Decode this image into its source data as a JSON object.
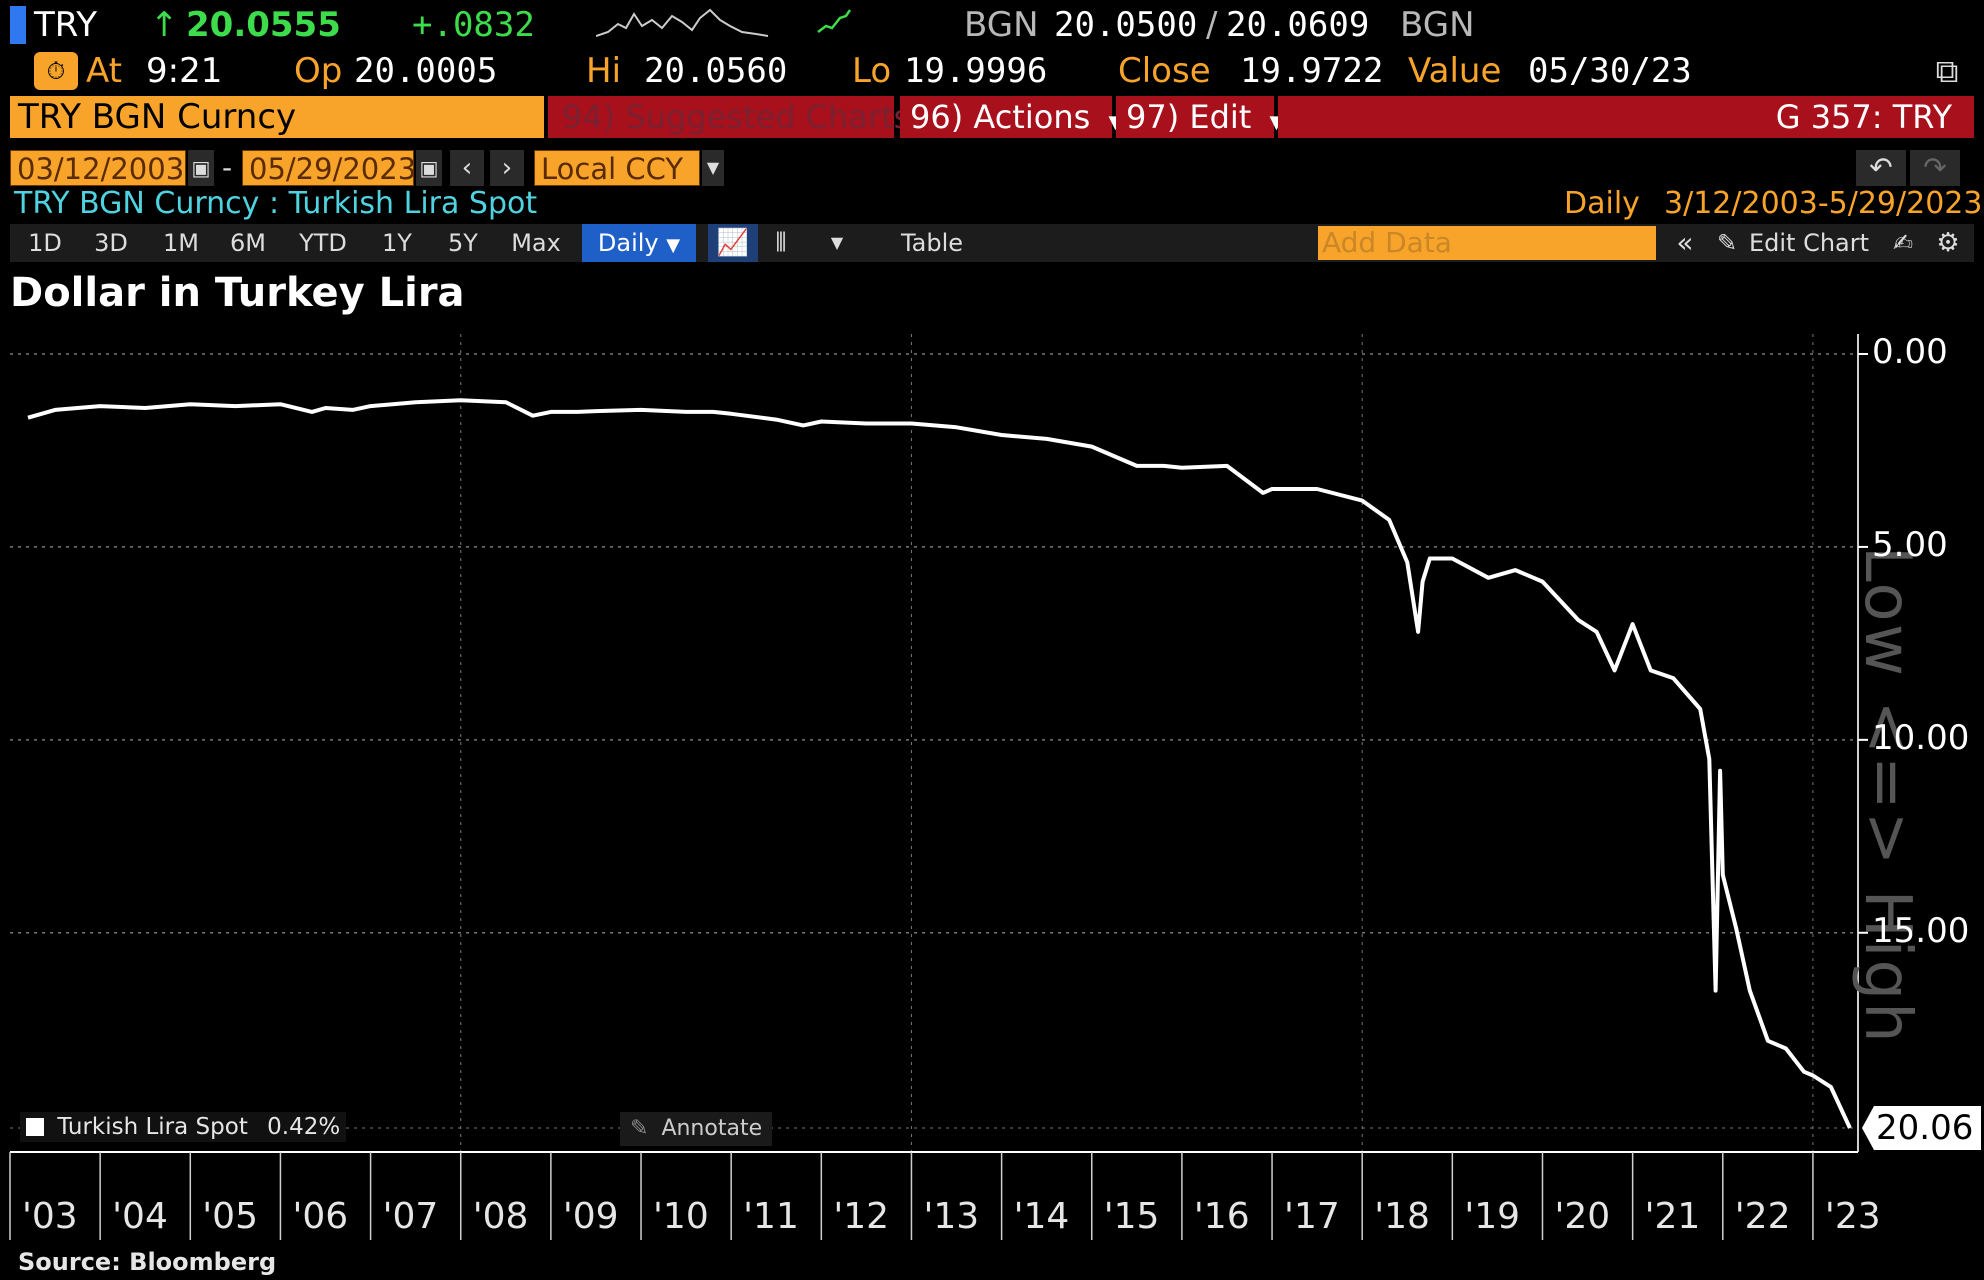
{
  "header": {
    "ticker": "TRY",
    "arrow": "↑",
    "last_price": "20.0555",
    "change": "+.0832",
    "source_label": "BGN",
    "bid": "20.0500",
    "slash": "/",
    "ask": "20.0609",
    "source_label2": "BGN",
    "at_label": "At",
    "at_value": "9:21",
    "op_label": "Op",
    "op_value": "20.0005",
    "hi_label": "Hi",
    "hi_value": "20.0560",
    "lo_label": "Lo",
    "lo_value": "19.9996",
    "close_label": "Close",
    "close_value": "19.9722",
    "value_label": "Value",
    "value_value": "05/30/23"
  },
  "menubar": {
    "security": "TRY BGN Curncy",
    "suggested": "94) Suggested Charts",
    "actions": "96) Actions",
    "edit": "97) Edit",
    "function_code": "G 357: TRY"
  },
  "controls": {
    "start_date": "03/12/2003",
    "dash": "-",
    "end_date": "05/29/2023",
    "currency": "Local CCY"
  },
  "info": {
    "security_desc": "TRY BGN Curncy : Turkish Lira Spot",
    "frequency": "Daily",
    "date_range": "3/12/2003-5/29/2023"
  },
  "toolbar": {
    "ranges": [
      "1D",
      "3D",
      "1M",
      "6M",
      "YTD",
      "1Y",
      "5Y",
      "Max"
    ],
    "period": "Daily",
    "table": "Table",
    "add_data_placeholder": "Add Data",
    "edit_chart": "Edit Chart"
  },
  "chart_data": {
    "type": "line",
    "title": "Dollar in Turkey Lira",
    "source": "Source: Bloomberg",
    "legend": "Turkish Lira Spot",
    "legend_pct": "0.42%",
    "annotate": "Annotate",
    "last_value_label": "20.06",
    "y_inverted": true,
    "ylim": [
      0,
      20.06
    ],
    "yticks": [
      "0.00",
      "5.00",
      "10.00",
      "15.00"
    ],
    "xticks": [
      "'03",
      "'04",
      "'05",
      "'06",
      "'07",
      "'08",
      "'09",
      "'10",
      "'11",
      "'12",
      "'13",
      "'14",
      "'15",
      "'16",
      "'17",
      "'18",
      "'19",
      "'20",
      "'21",
      "'22",
      "'23"
    ],
    "watermark": "Low <=> High",
    "grid": true,
    "series": [
      {
        "color": "#ffffff",
        "x": [
          2003.2,
          2003.5,
          2004.0,
          2004.5,
          2005.0,
          2005.5,
          2006.0,
          2006.35,
          2006.5,
          2006.8,
          2007.0,
          2007.5,
          2008.0,
          2008.5,
          2008.8,
          2009.0,
          2009.3,
          2009.5,
          2010.0,
          2010.5,
          2010.8,
          2011.0,
          2011.5,
          2011.8,
          2012.0,
          2012.5,
          2013.0,
          2013.5,
          2014.0,
          2014.5,
          2015.0,
          2015.5,
          2015.8,
          2016.0,
          2016.5,
          2016.9,
          2017.0,
          2017.5,
          2018.0,
          2018.3,
          2018.5,
          2018.62,
          2018.67,
          2018.75,
          2019.0,
          2019.4,
          2019.7,
          2020.0,
          2020.4,
          2020.6,
          2020.8,
          2021.0,
          2021.2,
          2021.45,
          2021.75,
          2021.85,
          2021.92,
          2021.97,
          2022.0,
          2022.15,
          2022.3,
          2022.5,
          2022.7,
          2022.9,
          2023.0,
          2023.2,
          2023.41
        ],
        "y": [
          1.65,
          1.45,
          1.35,
          1.4,
          1.3,
          1.35,
          1.3,
          1.5,
          1.4,
          1.45,
          1.35,
          1.25,
          1.2,
          1.25,
          1.6,
          1.5,
          1.5,
          1.48,
          1.45,
          1.5,
          1.5,
          1.55,
          1.7,
          1.85,
          1.75,
          1.8,
          1.8,
          1.9,
          2.1,
          2.2,
          2.4,
          2.9,
          2.9,
          2.95,
          2.9,
          3.6,
          3.5,
          3.5,
          3.8,
          4.3,
          5.4,
          7.2,
          5.9,
          5.3,
          5.3,
          5.8,
          5.6,
          5.9,
          6.9,
          7.2,
          8.2,
          7.0,
          8.2,
          8.4,
          9.2,
          10.5,
          16.5,
          10.8,
          13.5,
          14.9,
          16.5,
          17.8,
          18.0,
          18.6,
          18.7,
          19.0,
          20.06
        ]
      }
    ]
  }
}
